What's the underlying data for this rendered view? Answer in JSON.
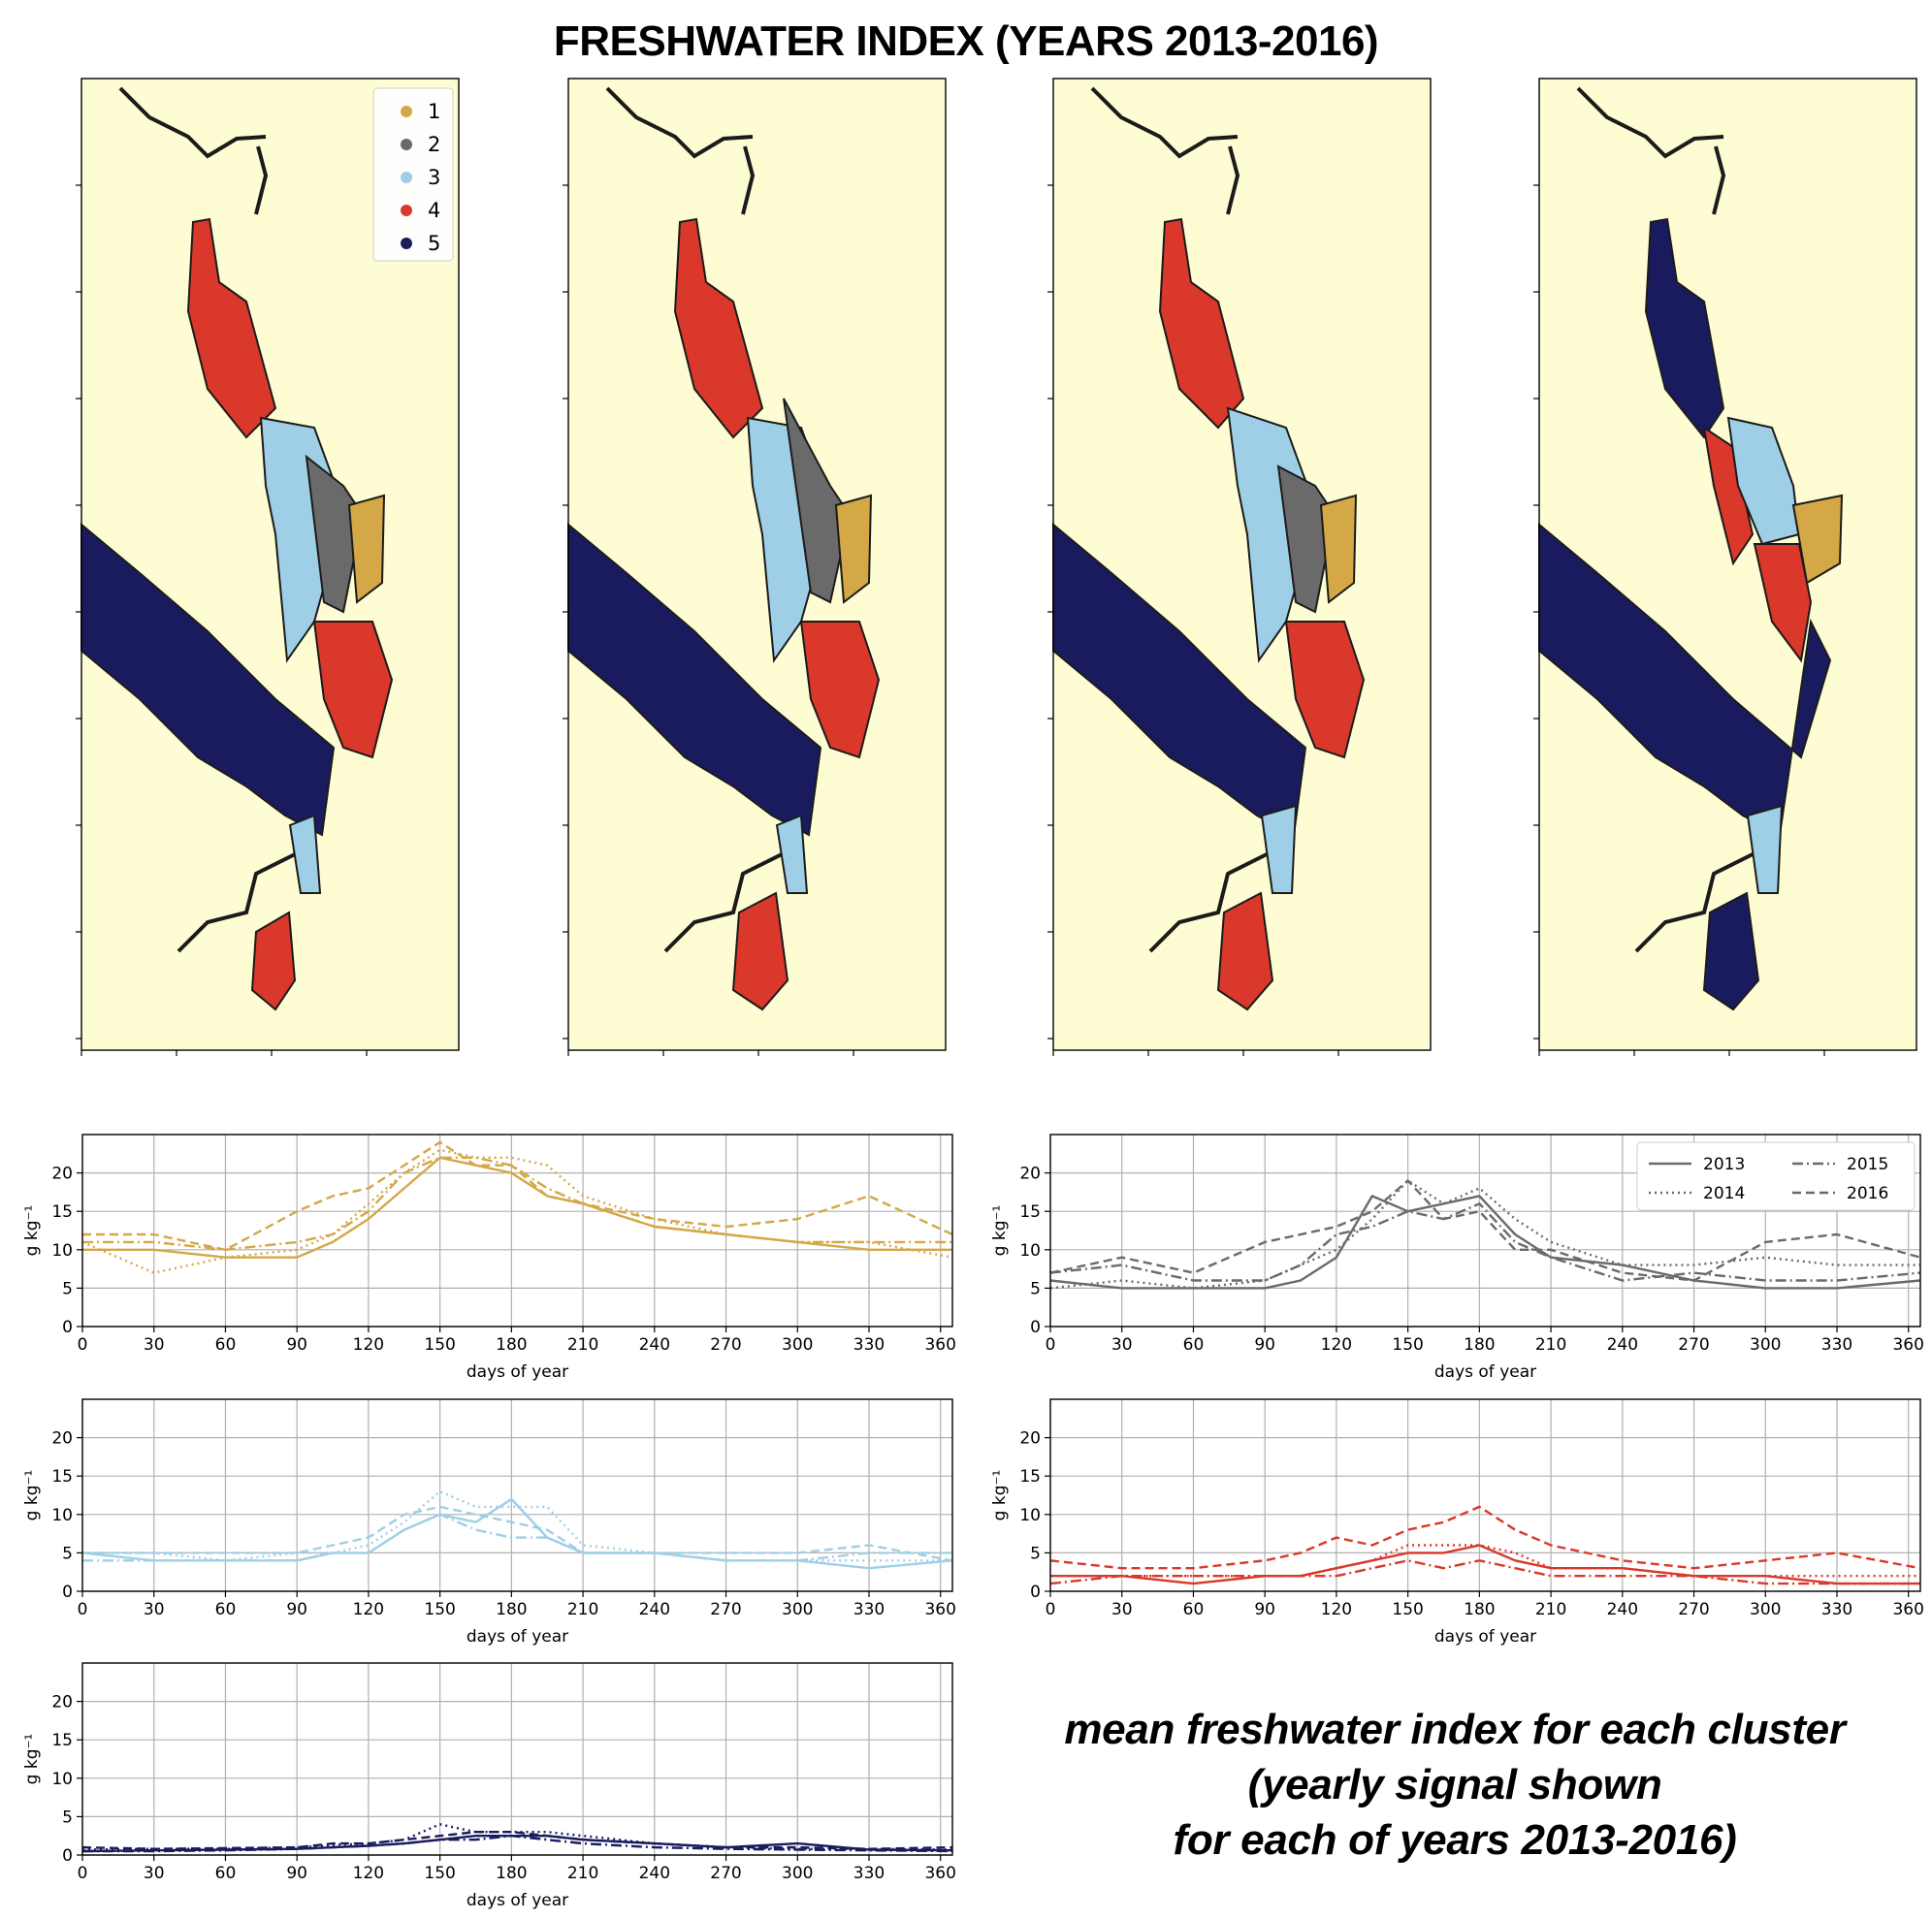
{
  "title": "FRESHWATER INDEX (YEARS 2013-2016)",
  "caption": {
    "line1": "mean freshwater index for each cluster",
    "line2": "(yearly signal shown",
    "line3": "for each of years 2013-2016)"
  },
  "colors": {
    "land": "#fdfcd2",
    "coast": "#1b1b1b",
    "cluster_1": "#d4a747",
    "cluster_2": "#6a6a6a",
    "cluster_3": "#9fcfe6",
    "cluster_4": "#d9382a",
    "cluster_5": "#1a1b5e",
    "grid": "#b0b0b0"
  },
  "map_legend": [
    "1",
    "2",
    "3",
    "4",
    "5"
  ],
  "year_legend": [
    {
      "label": "2013",
      "style": "solid"
    },
    {
      "label": "2014",
      "style": "dotted"
    },
    {
      "label": "2015",
      "style": "dashdot"
    },
    {
      "label": "2016",
      "style": "dashed"
    }
  ],
  "chart_data": [
    {
      "type": "line",
      "cluster": "1",
      "color": "#d4a747",
      "xlabel": "days of year",
      "ylabel": "g kg⁻¹",
      "xlim": [
        0,
        365
      ],
      "ylim": [
        0,
        25
      ],
      "xticks": [
        0,
        30,
        60,
        90,
        120,
        150,
        180,
        210,
        240,
        270,
        300,
        330,
        360
      ],
      "yticks": [
        0,
        5,
        10,
        15,
        20
      ],
      "grid": true,
      "series": [
        {
          "style": "solid",
          "x": [
            0,
            30,
            60,
            90,
            105,
            120,
            135,
            150,
            165,
            180,
            195,
            210,
            240,
            270,
            300,
            330,
            365
          ],
          "y": [
            10,
            10,
            9,
            9,
            11,
            14,
            18,
            22,
            21,
            20,
            17,
            16,
            13,
            12,
            11,
            10,
            10
          ]
        },
        {
          "style": "dotted",
          "x": [
            0,
            30,
            60,
            90,
            105,
            120,
            135,
            150,
            165,
            180,
            195,
            210,
            240,
            270,
            300,
            330,
            365
          ],
          "y": [
            11,
            7,
            9,
            10,
            12,
            16,
            20,
            23,
            22,
            22,
            21,
            17,
            14,
            12,
            11,
            11,
            9
          ]
        },
        {
          "style": "dashdot",
          "x": [
            0,
            30,
            60,
            90,
            105,
            120,
            135,
            150,
            165,
            180,
            195,
            210,
            240,
            270,
            300,
            330,
            365
          ],
          "y": [
            11,
            11,
            10,
            11,
            12,
            15,
            20,
            22,
            22,
            21,
            18,
            16,
            13,
            12,
            11,
            11,
            11
          ]
        },
        {
          "style": "dashed",
          "x": [
            0,
            30,
            60,
            90,
            105,
            120,
            135,
            150,
            165,
            180,
            195,
            210,
            240,
            270,
            300,
            330,
            365
          ],
          "y": [
            12,
            12,
            10,
            15,
            17,
            18,
            21,
            24,
            21,
            21,
            17,
            16,
            14,
            13,
            14,
            17,
            12
          ]
        }
      ]
    },
    {
      "type": "line",
      "cluster": "2",
      "color": "#6a6a6a",
      "xlabel": "days of year",
      "ylabel": "g kg⁻¹",
      "xlim": [
        0,
        365
      ],
      "ylim": [
        0,
        25
      ],
      "xticks": [
        0,
        30,
        60,
        90,
        120,
        150,
        180,
        210,
        240,
        270,
        300,
        330,
        360
      ],
      "yticks": [
        0,
        5,
        10,
        15,
        20
      ],
      "grid": true,
      "legend": "top-right",
      "series": [
        {
          "style": "solid",
          "x": [
            0,
            30,
            60,
            90,
            105,
            120,
            135,
            150,
            165,
            180,
            195,
            210,
            240,
            270,
            300,
            330,
            365
          ],
          "y": [
            6,
            5,
            5,
            5,
            6,
            9,
            17,
            15,
            16,
            17,
            12,
            9,
            8,
            6,
            5,
            5,
            6
          ]
        },
        {
          "style": "dotted",
          "x": [
            0,
            30,
            60,
            90,
            105,
            120,
            135,
            150,
            165,
            180,
            195,
            210,
            240,
            270,
            300,
            330,
            365
          ],
          "y": [
            5,
            6,
            5,
            6,
            8,
            10,
            14,
            19,
            16,
            18,
            14,
            11,
            8,
            8,
            9,
            8,
            8
          ]
        },
        {
          "style": "dashdot",
          "x": [
            0,
            30,
            60,
            90,
            105,
            120,
            135,
            150,
            165,
            180,
            195,
            210,
            240,
            270,
            300,
            330,
            365
          ],
          "y": [
            7,
            8,
            6,
            6,
            8,
            12,
            13,
            15,
            14,
            16,
            11,
            9,
            6,
            7,
            6,
            6,
            7
          ]
        },
        {
          "style": "dashed",
          "x": [
            0,
            30,
            60,
            90,
            105,
            120,
            135,
            150,
            165,
            180,
            195,
            210,
            240,
            270,
            300,
            330,
            365
          ],
          "y": [
            7,
            9,
            7,
            11,
            12,
            13,
            15,
            19,
            14,
            15,
            10,
            10,
            7,
            6,
            11,
            12,
            9
          ]
        }
      ]
    },
    {
      "type": "line",
      "cluster": "3",
      "color": "#9fcfe6",
      "xlabel": "days of year",
      "ylabel": "g kg⁻¹",
      "xlim": [
        0,
        365
      ],
      "ylim": [
        0,
        25
      ],
      "xticks": [
        0,
        30,
        60,
        90,
        120,
        150,
        180,
        210,
        240,
        270,
        300,
        330,
        360
      ],
      "yticks": [
        0,
        5,
        10,
        15,
        20
      ],
      "grid": true,
      "series": [
        {
          "style": "solid",
          "x": [
            0,
            30,
            60,
            90,
            105,
            120,
            135,
            150,
            165,
            180,
            195,
            210,
            240,
            270,
            300,
            330,
            365
          ],
          "y": [
            5,
            4,
            4,
            4,
            5,
            5,
            8,
            10,
            9,
            12,
            7,
            5,
            5,
            4,
            4,
            3,
            4
          ]
        },
        {
          "style": "dotted",
          "x": [
            0,
            30,
            60,
            90,
            105,
            120,
            135,
            150,
            165,
            180,
            195,
            210,
            240,
            270,
            300,
            330,
            365
          ],
          "y": [
            5,
            5,
            4,
            5,
            5,
            6,
            9,
            13,
            11,
            11,
            11,
            6,
            5,
            4,
            4,
            4,
            4
          ]
        },
        {
          "style": "dashdot",
          "x": [
            0,
            30,
            60,
            90,
            105,
            120,
            135,
            150,
            165,
            180,
            195,
            210,
            240,
            270,
            300,
            330,
            365
          ],
          "y": [
            4,
            4,
            4,
            4,
            5,
            5,
            8,
            10,
            8,
            7,
            7,
            5,
            5,
            4,
            4,
            5,
            5
          ]
        },
        {
          "style": "dashed",
          "x": [
            0,
            30,
            60,
            90,
            105,
            120,
            135,
            150,
            165,
            180,
            195,
            210,
            240,
            270,
            300,
            330,
            365
          ],
          "y": [
            5,
            5,
            5,
            5,
            6,
            7,
            10,
            11,
            10,
            9,
            8,
            5,
            5,
            5,
            5,
            6,
            4
          ]
        }
      ]
    },
    {
      "type": "line",
      "cluster": "4",
      "color": "#d9382a",
      "xlabel": "days of year",
      "ylabel": "g kg⁻¹",
      "xlim": [
        0,
        365
      ],
      "ylim": [
        0,
        25
      ],
      "xticks": [
        0,
        30,
        60,
        90,
        120,
        150,
        180,
        210,
        240,
        270,
        300,
        330,
        360
      ],
      "yticks": [
        0,
        5,
        10,
        15,
        20
      ],
      "grid": true,
      "series": [
        {
          "style": "solid",
          "x": [
            0,
            30,
            60,
            90,
            105,
            120,
            135,
            150,
            165,
            180,
            195,
            210,
            240,
            270,
            300,
            330,
            365
          ],
          "y": [
            2,
            2,
            1,
            2,
            2,
            3,
            4,
            5,
            5,
            6,
            4,
            3,
            3,
            2,
            2,
            1,
            1
          ]
        },
        {
          "style": "dotted",
          "x": [
            0,
            30,
            60,
            90,
            105,
            120,
            135,
            150,
            165,
            180,
            195,
            210,
            240,
            270,
            300,
            330,
            365
          ],
          "y": [
            2,
            2,
            2,
            2,
            2,
            3,
            4,
            6,
            6,
            6,
            5,
            3,
            3,
            2,
            2,
            2,
            2
          ]
        },
        {
          "style": "dashdot",
          "x": [
            0,
            30,
            60,
            90,
            105,
            120,
            135,
            150,
            165,
            180,
            195,
            210,
            240,
            270,
            300,
            330,
            365
          ],
          "y": [
            1,
            2,
            2,
            2,
            2,
            2,
            3,
            4,
            3,
            4,
            3,
            2,
            2,
            2,
            1,
            1,
            1
          ]
        },
        {
          "style": "dashed",
          "x": [
            0,
            30,
            60,
            90,
            105,
            120,
            135,
            150,
            165,
            180,
            195,
            210,
            240,
            270,
            300,
            330,
            365
          ],
          "y": [
            4,
            3,
            3,
            4,
            5,
            7,
            6,
            8,
            9,
            11,
            8,
            6,
            4,
            3,
            4,
            5,
            3
          ]
        }
      ]
    },
    {
      "type": "line",
      "cluster": "5",
      "color": "#1a1b5e",
      "xlabel": "days of year",
      "ylabel": "g kg⁻¹",
      "xlim": [
        0,
        365
      ],
      "ylim": [
        0,
        25
      ],
      "xticks": [
        0,
        30,
        60,
        90,
        120,
        150,
        180,
        210,
        240,
        270,
        300,
        330,
        360
      ],
      "yticks": [
        0,
        5,
        10,
        15,
        20
      ],
      "grid": true,
      "series": [
        {
          "style": "solid",
          "x": [
            0,
            30,
            60,
            90,
            105,
            120,
            135,
            150,
            165,
            180,
            195,
            210,
            240,
            270,
            300,
            330,
            365
          ],
          "y": [
            0.5,
            0.6,
            0.7,
            0.8,
            1,
            1.2,
            1.5,
            2,
            2.5,
            2.5,
            2.5,
            2,
            1.5,
            1,
            1.5,
            0.7,
            0.6
          ]
        },
        {
          "style": "dotted",
          "x": [
            0,
            30,
            60,
            90,
            105,
            120,
            135,
            150,
            165,
            180,
            195,
            210,
            240,
            270,
            300,
            330,
            365
          ],
          "y": [
            0.7,
            0.8,
            0.8,
            1,
            1.3,
            1.5,
            2,
            4,
            3,
            3,
            3,
            2.5,
            1.5,
            1,
            0.8,
            0.8,
            0.7
          ]
        },
        {
          "style": "dashdot",
          "x": [
            0,
            30,
            60,
            90,
            105,
            120,
            135,
            150,
            165,
            180,
            195,
            210,
            240,
            270,
            300,
            330,
            365
          ],
          "y": [
            0.5,
            0.5,
            0.6,
            0.8,
            1,
            1.2,
            1.5,
            2,
            2,
            2.5,
            2,
            1.5,
            1,
            0.8,
            0.7,
            0.6,
            0.5
          ]
        },
        {
          "style": "dashed",
          "x": [
            0,
            30,
            60,
            90,
            105,
            120,
            135,
            150,
            165,
            180,
            195,
            210,
            240,
            270,
            300,
            330,
            365
          ],
          "y": [
            1,
            0.8,
            0.9,
            1,
            1.5,
            1.5,
            2,
            2.5,
            3,
            3,
            2.5,
            2,
            1.5,
            1,
            1,
            0.8,
            1
          ]
        }
      ]
    }
  ]
}
